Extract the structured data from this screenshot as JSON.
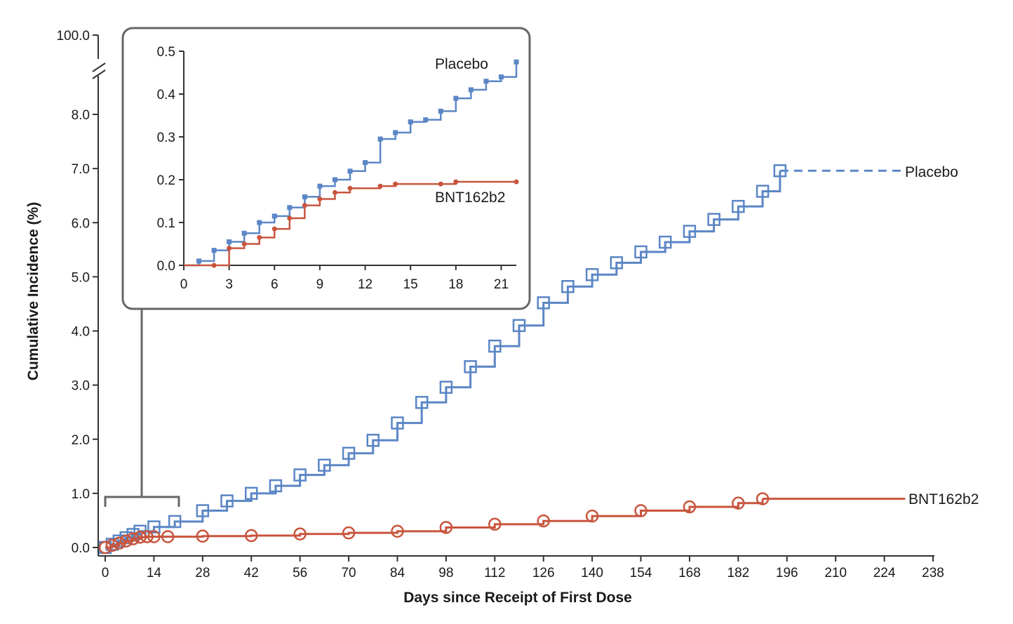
{
  "chart_data": [
    {
      "type": "line",
      "xlabel": "Days since Receipt of First Dose",
      "ylabel": "Cumulative Incidence (%)",
      "xlim": [
        0,
        238
      ],
      "ylim": [
        0,
        8.0
      ],
      "y_axis_break_top_tick": "100.0",
      "x_ticks": [
        "0",
        "14",
        "28",
        "42",
        "56",
        "70",
        "84",
        "98",
        "112",
        "126",
        "140",
        "154",
        "168",
        "182",
        "196",
        "210",
        "224",
        "238"
      ],
      "y_ticks": [
        "0.0",
        "1.0",
        "2.0",
        "3.0",
        "4.0",
        "5.0",
        "6.0",
        "7.0",
        "8.0"
      ],
      "series": [
        {
          "name": "Placebo",
          "color": "#5b86c5",
          "marker": "square",
          "step": true,
          "x": [
            0,
            2,
            4,
            6,
            8,
            10,
            14,
            20,
            28,
            35,
            42,
            49,
            56,
            63,
            70,
            77,
            84,
            91,
            98,
            105,
            112,
            119,
            126,
            133,
            140,
            147,
            154,
            161,
            168,
            175,
            182,
            189,
            194
          ],
          "y": [
            0,
            0.06,
            0.12,
            0.18,
            0.24,
            0.3,
            0.38,
            0.48,
            0.68,
            0.86,
            1.0,
            1.14,
            1.34,
            1.52,
            1.74,
            1.98,
            2.3,
            2.68,
            2.96,
            3.34,
            3.72,
            4.1,
            4.52,
            4.82,
            5.04,
            5.26,
            5.46,
            5.64,
            5.84,
            6.06,
            6.3,
            6.58,
            6.96
          ],
          "censor_extension_to_x": 230
        },
        {
          "name": "BNT162b2",
          "color": "#c8553d",
          "marker": "circle",
          "step": true,
          "x": [
            0,
            2,
            4,
            6,
            8,
            10,
            12,
            14,
            18,
            28,
            42,
            56,
            70,
            84,
            98,
            112,
            126,
            140,
            154,
            168,
            182,
            189
          ],
          "y": [
            0,
            0.04,
            0.08,
            0.12,
            0.16,
            0.19,
            0.2,
            0.2,
            0.2,
            0.21,
            0.22,
            0.25,
            0.27,
            0.3,
            0.37,
            0.43,
            0.49,
            0.58,
            0.68,
            0.75,
            0.82,
            0.9
          ],
          "censor_extension_to_x": 230
        }
      ]
    },
    {
      "type": "line",
      "xlim": [
        0,
        22
      ],
      "ylim": [
        0,
        0.5
      ],
      "x_ticks": [
        "0",
        "3",
        "6",
        "9",
        "12",
        "15",
        "18",
        "21"
      ],
      "y_ticks": [
        "0.0",
        "0.1",
        "0.2",
        "0.3",
        "0.4",
        "0.5"
      ],
      "series": [
        {
          "name": "Placebo",
          "color": "#5b86c5",
          "marker": "square",
          "step": true,
          "x": [
            0,
            1,
            2,
            3,
            4,
            5,
            6,
            7,
            8,
            9,
            10,
            11,
            12,
            13,
            14,
            15,
            16,
            17,
            18,
            19,
            20,
            21,
            22
          ],
          "y": [
            0,
            0.01,
            0.035,
            0.055,
            0.075,
            0.1,
            0.115,
            0.135,
            0.16,
            0.185,
            0.2,
            0.22,
            0.24,
            0.295,
            0.31,
            0.335,
            0.34,
            0.36,
            0.39,
            0.41,
            0.43,
            0.44,
            0.475
          ]
        },
        {
          "name": "BNT162b2",
          "color": "#c8553d",
          "marker": "circle",
          "step": true,
          "x": [
            0,
            2,
            3,
            4,
            5,
            6,
            7,
            8,
            9,
            10,
            11,
            13,
            14,
            17,
            18,
            22
          ],
          "y": [
            0,
            0.0,
            0.04,
            0.05,
            0.065,
            0.085,
            0.11,
            0.14,
            0.155,
            0.17,
            0.18,
            0.185,
            0.19,
            0.19,
            0.195,
            0.195
          ]
        }
      ]
    }
  ],
  "colors": {
    "placebo": "#5b86c5",
    "vaccine": "#c8553d",
    "axis": "#333333",
    "inset_border": "#666666"
  }
}
